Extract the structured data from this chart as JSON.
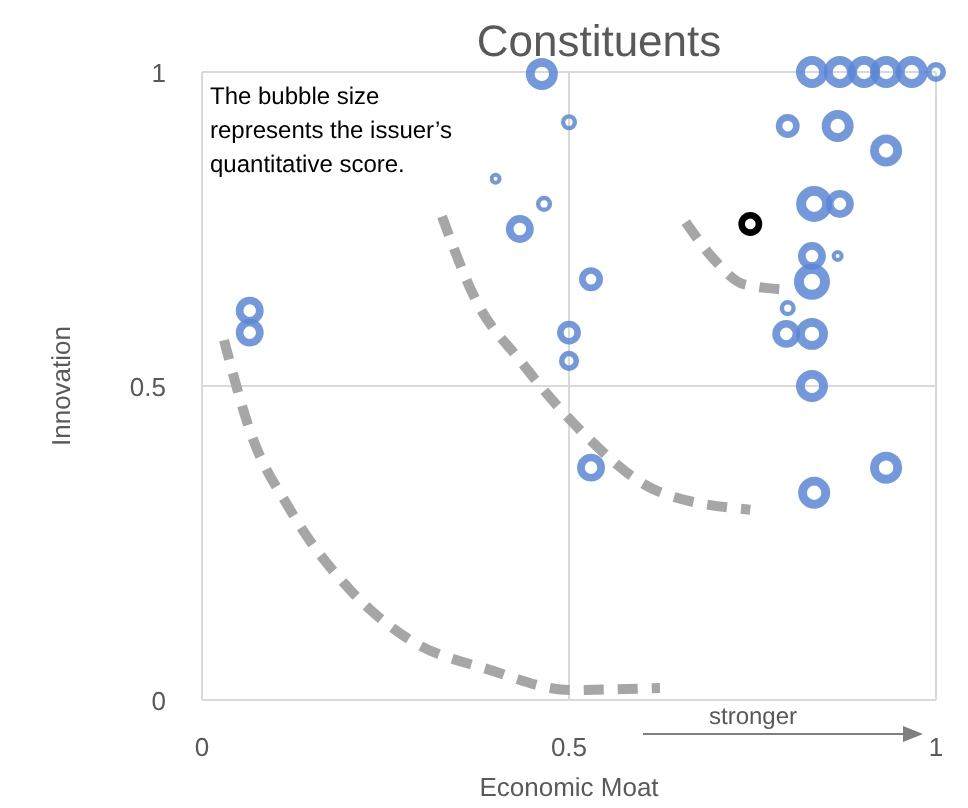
{
  "chart_data": {
    "type": "bubble",
    "title": "Constituents",
    "xlabel": "Economic Moat",
    "ylabel": "Innovation",
    "xlim": [
      0,
      1
    ],
    "ylim": [
      0,
      1
    ],
    "xticks": [
      0,
      0.5,
      1
    ],
    "yticks": [
      0,
      0.5,
      1
    ],
    "grid": true,
    "annotations": [
      "The bubble size represents the issuer’s quantitative score.",
      "stronger"
    ],
    "series": [
      {
        "color": "#5b86d6",
        "x": [
          0.463,
          0.5,
          0.4,
          0.466,
          0.433,
          0.065,
          0.065,
          0.5,
          0.5,
          0.53,
          0.53,
          0.831,
          0.869,
          0.902,
          0.932,
          0.967,
          1.0,
          0.798,
          0.866,
          0.932,
          0.834,
          0.869,
          0.831,
          0.866,
          0.831,
          0.798,
          0.796,
          0.831,
          0.831,
          0.834,
          0.932
        ],
        "values": [
          0.997,
          0.92,
          0.83,
          0.79,
          0.75,
          0.62,
          0.585,
          0.585,
          0.54,
          0.67,
          0.37,
          1,
          1,
          1,
          1,
          1,
          1,
          0.914,
          0.914,
          0.875,
          0.79,
          0.79,
          0.707,
          0.707,
          0.666,
          0.624,
          0.583,
          0.583,
          0.5,
          0.33,
          0.37
        ],
        "sizes": [
          0.79,
          0.2,
          0.11,
          0.2,
          0.6,
          0.6,
          0.6,
          0.44,
          0.31,
          0.44,
          0.6,
          0.79,
          0.79,
          0.79,
          0.79,
          0.79,
          0.31,
          0.44,
          0.79,
          0.79,
          1,
          0.6,
          0.6,
          0.11,
          1,
          0.2,
          0.6,
          0.79,
          0.79,
          0.79,
          0.79
        ]
      },
      {
        "color": "#000000",
        "x": [
          0.747
        ],
        "values": [
          0.758
        ],
        "sizes": [
          0.44
        ]
      },
      {
        "type": "line",
        "color": "#a6a6a6",
        "line_style": "dashed",
        "marker": "none",
        "x": [
          0.659,
          0.698,
          0.738,
          0.801
        ],
        "values": [
          0.761,
          0.701,
          0.662,
          0.653
        ]
      },
      {
        "type": "line",
        "color": "#a6a6a6",
        "line_style": "dashed",
        "marker": "none",
        "x": [
          0.327,
          0.373,
          0.433,
          0.515,
          0.624,
          0.747
        ],
        "values": [
          0.77,
          0.637,
          0.541,
          0.43,
          0.331,
          0.303
        ]
      },
      {
        "type": "line",
        "color": "#a6a6a6",
        "line_style": "dashed",
        "marker": "none",
        "x": [
          0.03,
          0.065,
          0.12,
          0.202,
          0.283,
          0.392,
          0.501,
          0.624
        ],
        "values": [
          0.573,
          0.43,
          0.303,
          0.175,
          0.096,
          0.048,
          0.016,
          0.019
        ]
      }
    ]
  }
}
